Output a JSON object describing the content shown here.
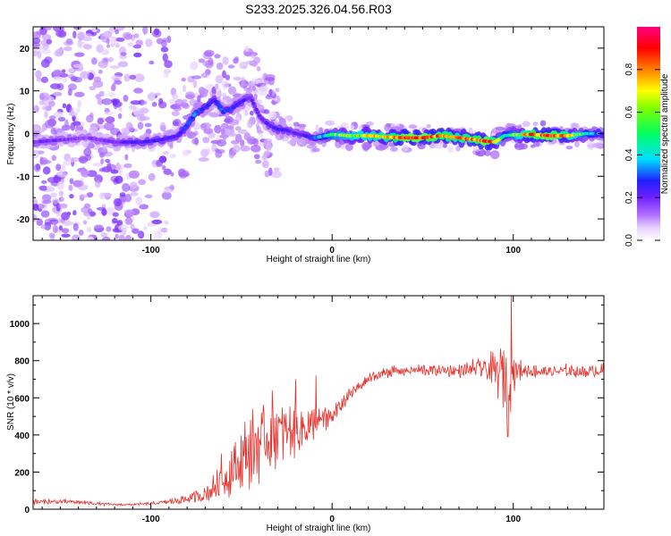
{
  "page_title": "S233.2025.326.04.56.R03",
  "colors": {
    "snr_line": "#e8302a",
    "frame": "#000000",
    "colormap": [
      "#ffffff",
      "#e6d0ff",
      "#b070ff",
      "#7020ff",
      "#2020ff",
      "#00e0ff",
      "#00ff60",
      "#ffff00",
      "#ff8000",
      "#ff0000",
      "#ff0080"
    ]
  },
  "chart_data": [
    {
      "type": "heatmap",
      "title": "",
      "xlabel": "Height of straight line (km)",
      "ylabel": "Frequency (Hz)",
      "xlim": [
        -165,
        150
      ],
      "ylim": [
        -25,
        25
      ],
      "xticks": [
        -100,
        0,
        100
      ],
      "xtick_labels": [
        "-100",
        "0",
        "100"
      ],
      "yticks": [
        -20,
        -10,
        0,
        10,
        20
      ],
      "ytick_labels": [
        "-20",
        "-10",
        "0",
        "10",
        "20"
      ],
      "colorbar": {
        "label": "Normalized spectral amplitude",
        "range": [
          0,
          1
        ],
        "ticks": [
          0.0,
          0.2,
          0.4,
          0.6,
          0.8
        ],
        "tick_labels": [
          "0.0",
          "0.2",
          "0.4",
          "0.6",
          "0.8"
        ]
      },
      "ridge": {
        "x": [
          -165,
          -150,
          -135,
          -120,
          -105,
          -95,
          -85,
          -80,
          -75,
          -70,
          -65,
          -60,
          -55,
          -50,
          -45,
          -40,
          -35,
          -30,
          -25,
          -20,
          -15,
          -10,
          0,
          10,
          20,
          30,
          40,
          50,
          60,
          70,
          80,
          85,
          90,
          95,
          100,
          110,
          120,
          130,
          140,
          150
        ],
        "y": [
          -2,
          -1.5,
          -1,
          -2,
          -2,
          -1.5,
          -0.5,
          2,
          5,
          6,
          8,
          5,
          6,
          7.5,
          8.5,
          4,
          2,
          1,
          0.8,
          0,
          -0.5,
          -1,
          -0.2,
          -0.5,
          -0.5,
          -0.8,
          -1,
          -1,
          -0.5,
          -1,
          -1.5,
          -1.8,
          -2,
          -0.5,
          -0.3,
          -0.2,
          -0.5,
          -0.5,
          0,
          0
        ],
        "amplitude": [
          0.3,
          0.28,
          0.25,
          0.3,
          0.35,
          0.35,
          0.35,
          0.4,
          0.42,
          0.38,
          0.35,
          0.4,
          0.38,
          0.35,
          0.3,
          0.3,
          0.32,
          0.35,
          0.35,
          0.3,
          0.35,
          0.4,
          0.6,
          0.65,
          0.7,
          0.75,
          0.85,
          0.85,
          0.8,
          0.75,
          0.8,
          0.85,
          0.75,
          0.5,
          0.6,
          0.8,
          0.85,
          0.75,
          0.55,
          0.4
        ]
      }
    },
    {
      "type": "line",
      "title": "",
      "xlabel": "Height of straight line (km)",
      "ylabel": "SNR (10 * v/v)",
      "xlim": [
        -165,
        150
      ],
      "ylim": [
        0,
        1150
      ],
      "xticks": [
        -100,
        0,
        100
      ],
      "xtick_labels": [
        "-100",
        "0",
        "100"
      ],
      "yticks": [
        0,
        200,
        400,
        600,
        800,
        1000
      ],
      "ytick_labels": [
        "0",
        "200",
        "400",
        "600",
        "800",
        "1000"
      ],
      "series": [
        {
          "name": "SNR",
          "x": [
            -165,
            -150,
            -140,
            -130,
            -120,
            -110,
            -100,
            -90,
            -80,
            -70,
            -65,
            -60,
            -55,
            -50,
            -45,
            -40,
            -35,
            -30,
            -25,
            -20,
            -15,
            -10,
            -5,
            0,
            5,
            10,
            15,
            20,
            25,
            30,
            40,
            50,
            60,
            70,
            75,
            80,
            85,
            90,
            95,
            97,
            100,
            105,
            110,
            120,
            130,
            140,
            150
          ],
          "baseline": [
            40,
            40,
            38,
            30,
            25,
            25,
            30,
            40,
            55,
            80,
            120,
            160,
            210,
            260,
            320,
            360,
            390,
            410,
            420,
            430,
            440,
            450,
            480,
            500,
            560,
            620,
            660,
            700,
            720,
            740,
            745,
            750,
            748,
            745,
            750,
            760,
            755,
            740,
            730,
            720,
            740,
            750,
            745,
            740,
            745,
            740,
            750
          ],
          "noise_amplitude": [
            20,
            20,
            18,
            12,
            8,
            8,
            10,
            20,
            35,
            60,
            100,
            150,
            200,
            250,
            280,
            260,
            240,
            220,
            200,
            180,
            150,
            130,
            100,
            80,
            60,
            50,
            45,
            40,
            40,
            40,
            40,
            45,
            40,
            45,
            60,
            70,
            90,
            150,
            250,
            350,
            150,
            60,
            45,
            45,
            45,
            45,
            45
          ],
          "peaks": [
            {
              "x": -61,
              "y": 300
            },
            {
              "x": -33,
              "y": 640
            },
            {
              "x": -20,
              "y": 700
            },
            {
              "x": -9,
              "y": 720
            },
            {
              "x": 99,
              "y": 1150
            },
            {
              "x": 97,
              "y": 390
            }
          ]
        }
      ]
    }
  ]
}
